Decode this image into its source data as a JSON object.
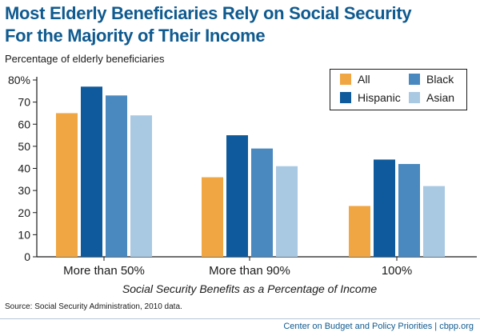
{
  "title_lines": [
    "Most Elderly Beneficiaries Rely on Social Security",
    "For the Majority of Their Income"
  ],
  "footer": {
    "source": "Source: Social Security Administration, 2010 data.",
    "credit": "Center on Budget and Policy Priorities | cbpp.org"
  },
  "chart_data": {
    "type": "bar",
    "title": "Most Elderly Beneficiaries Rely on Social Security For the Majority of Their Income",
    "ylabel": "Percentage of elderly beneficiaries",
    "xlabel": "Social Security Benefits as a Percentage of Income",
    "categories": [
      "More than 50%",
      "More than 90%",
      "100%"
    ],
    "series": [
      {
        "name": "All",
        "color": "#f0a643",
        "values": [
          65,
          36,
          23
        ]
      },
      {
        "name": "Hispanic",
        "color": "#0f5a9c",
        "values": [
          77,
          55,
          44
        ]
      },
      {
        "name": "Black",
        "color": "#4a89bf",
        "values": [
          73,
          49,
          42
        ]
      },
      {
        "name": "Asian",
        "color": "#a9c9e3",
        "values": [
          64,
          41,
          32
        ]
      }
    ],
    "ylim": [
      0,
      80
    ],
    "yticks": [
      0,
      10,
      20,
      30,
      40,
      50,
      60,
      70,
      80
    ],
    "ytick_labels": [
      "0",
      "10",
      "20",
      "30",
      "40",
      "50",
      "60",
      "70",
      "80%"
    ],
    "grid": false,
    "legend_position": "top-right"
  }
}
